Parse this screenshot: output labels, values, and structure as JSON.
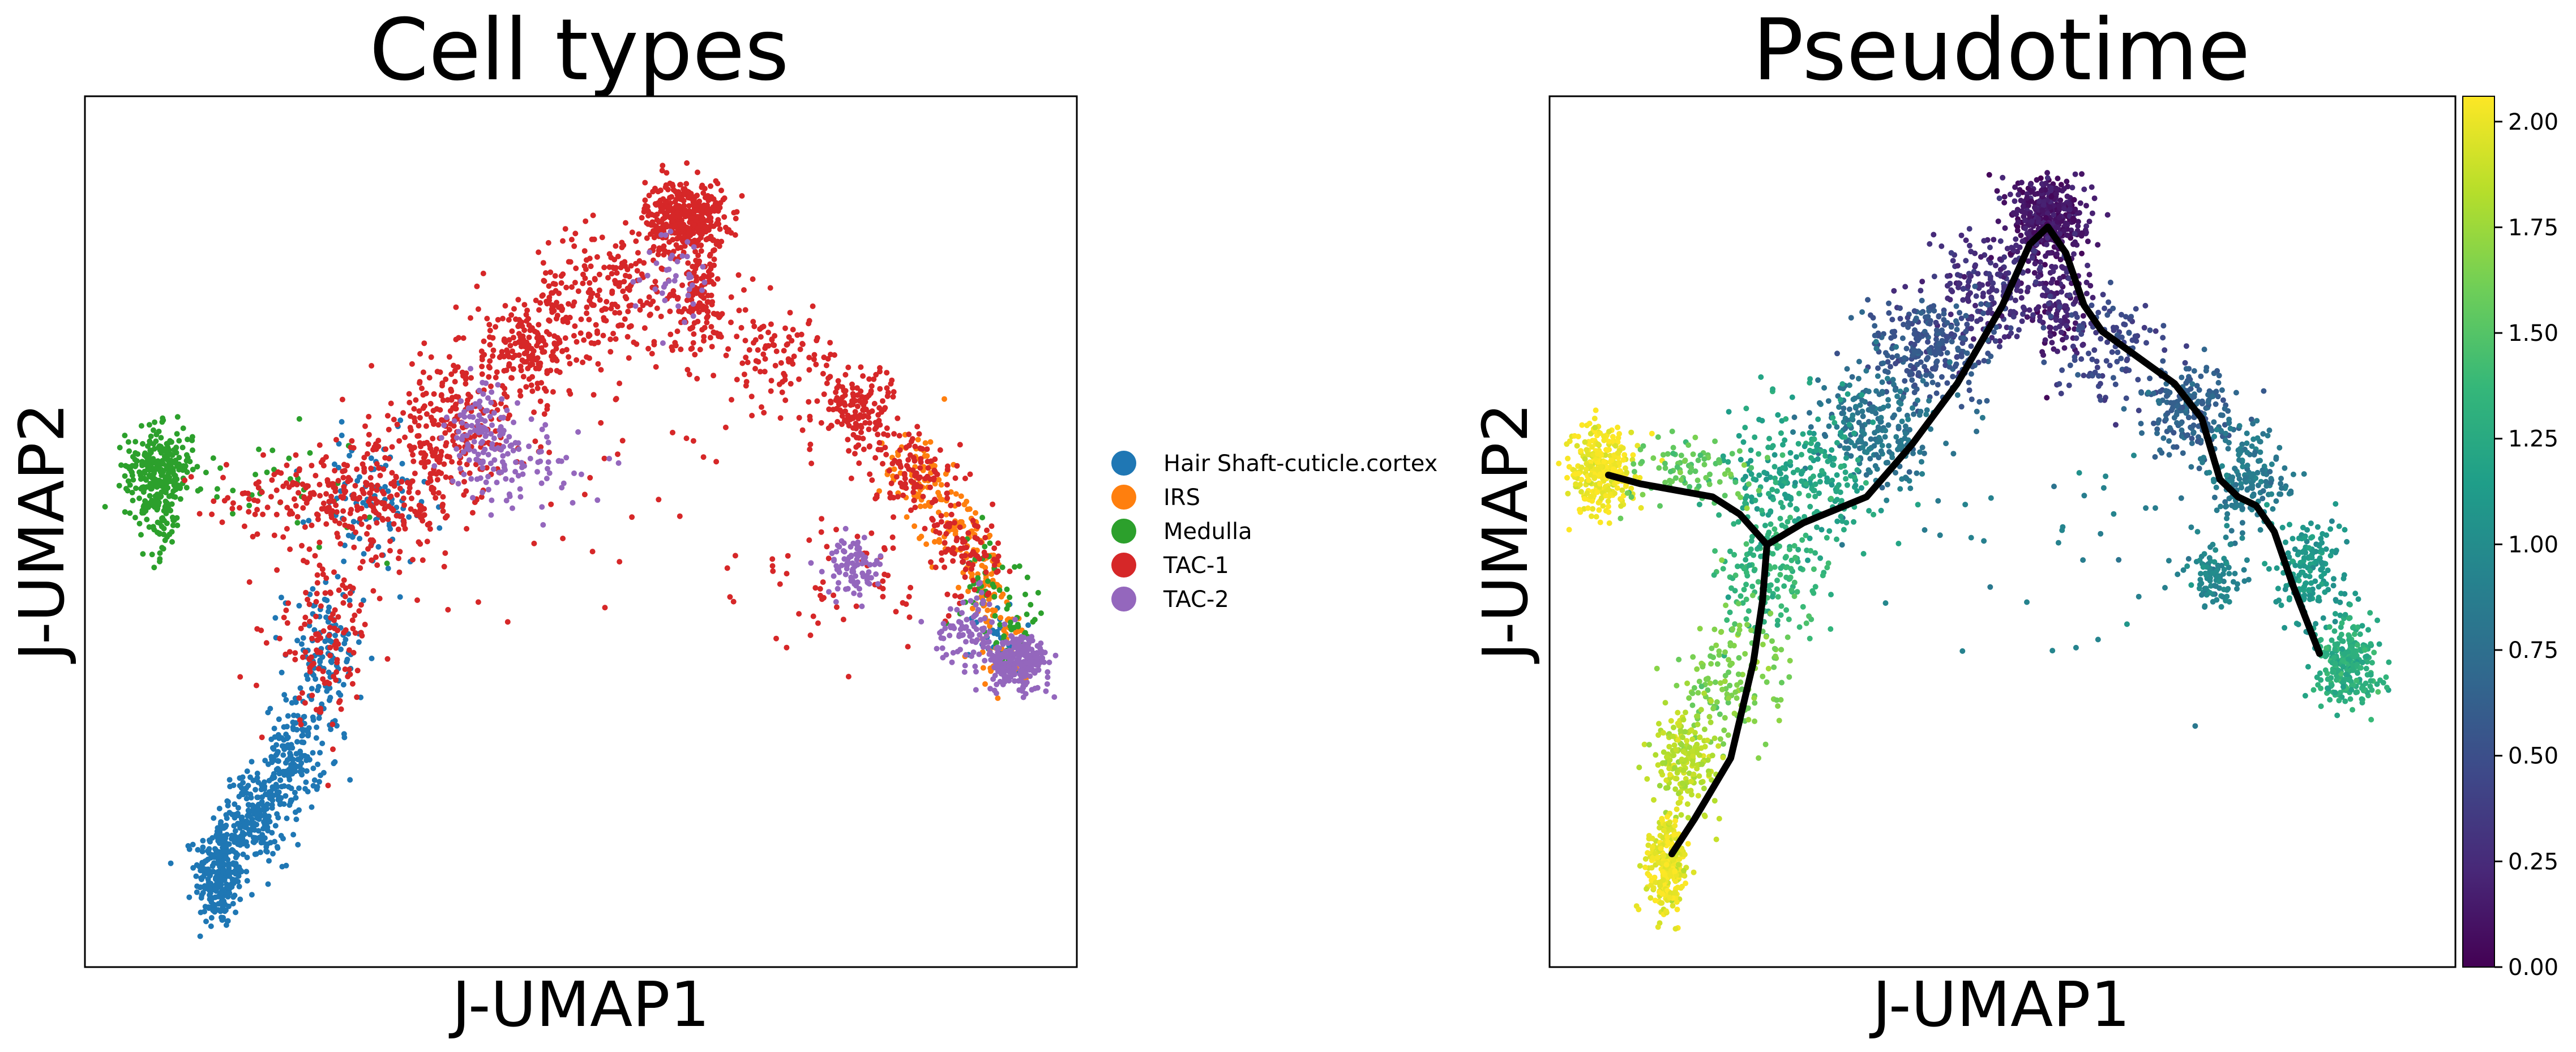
{
  "chart_data": [
    {
      "type": "scatter",
      "title": "Cell types",
      "xlabel": "J-UMAP1",
      "ylabel": "J-UMAP2",
      "xlim": [
        0,
        100
      ],
      "ylim": [
        0,
        100
      ],
      "grid": false,
      "legend_placement": "right",
      "series": [
        {
          "name": "Hair Shaft-cuticle.cortex",
          "color": "#1f77b4",
          "clusters": [
            {
              "cx": 13.5,
              "cy": 10.5,
              "sx": 1.2,
              "sy": 3.0,
              "n": 260
            },
            {
              "cx": 17,
              "cy": 17,
              "sx": 1.6,
              "sy": 2.6,
              "n": 220
            },
            {
              "cx": 21,
              "cy": 24,
              "sx": 1.4,
              "sy": 3.2,
              "n": 160
            },
            {
              "cx": 24,
              "cy": 35,
              "sx": 2.0,
              "sy": 4.5,
              "n": 120
            },
            {
              "cx": 29,
              "cy": 53,
              "sx": 3.0,
              "sy": 4.0,
              "n": 90
            },
            {
              "cx": 92,
              "cy": 38,
              "sx": 1.4,
              "sy": 2.0,
              "n": 30
            }
          ]
        },
        {
          "name": "IRS",
          "color": "#ff7f0e",
          "clusters": [
            {
              "cx": 84,
              "cy": 57,
              "sx": 1.6,
              "sy": 2.4,
              "n": 70
            },
            {
              "cx": 88,
              "cy": 50,
              "sx": 1.4,
              "sy": 2.6,
              "n": 70
            },
            {
              "cx": 91,
              "cy": 44,
              "sx": 1.2,
              "sy": 2.4,
              "n": 60
            },
            {
              "cx": 93,
              "cy": 36,
              "sx": 1.6,
              "sy": 2.4,
              "n": 40
            }
          ]
        },
        {
          "name": "Medulla",
          "color": "#2ca02c",
          "clusters": [
            {
              "cx": 7.5,
              "cy": 57.5,
              "sx": 1.7,
              "sy": 2.2,
              "n": 260
            },
            {
              "cx": 7.5,
              "cy": 52,
              "sx": 1.2,
              "sy": 2.6,
              "n": 80
            },
            {
              "cx": 18,
              "cy": 55,
              "sx": 6.0,
              "sy": 3.0,
              "n": 40
            },
            {
              "cx": 91,
              "cy": 45,
              "sx": 1.4,
              "sy": 3.0,
              "n": 40
            },
            {
              "cx": 94,
              "cy": 38,
              "sx": 1.4,
              "sy": 2.0,
              "n": 30
            }
          ]
        },
        {
          "name": "TAC-1",
          "color": "#d62728",
          "clusters": [
            {
              "cx": 60.5,
              "cy": 86,
              "sx": 2.0,
              "sy": 2.2,
              "n": 420
            },
            {
              "cx": 62,
              "cy": 76,
              "sx": 1.6,
              "sy": 3.0,
              "n": 120
            },
            {
              "cx": 53,
              "cy": 78,
              "sx": 4.0,
              "sy": 3.5,
              "n": 200
            },
            {
              "cx": 45,
              "cy": 71,
              "sx": 3.5,
              "sy": 3.0,
              "n": 220
            },
            {
              "cx": 37,
              "cy": 62,
              "sx": 4.0,
              "sy": 4.0,
              "n": 240
            },
            {
              "cx": 30,
              "cy": 53,
              "sx": 4.0,
              "sy": 3.5,
              "n": 200
            },
            {
              "cx": 22,
              "cy": 54,
              "sx": 4.5,
              "sy": 2.0,
              "n": 120
            },
            {
              "cx": 24,
              "cy": 38,
              "sx": 2.5,
              "sy": 5.0,
              "n": 140
            },
            {
              "cx": 70,
              "cy": 70,
              "sx": 3.0,
              "sy": 3.0,
              "n": 110
            },
            {
              "cx": 78,
              "cy": 64,
              "sx": 2.0,
              "sy": 2.5,
              "n": 150
            },
            {
              "cx": 84,
              "cy": 56,
              "sx": 2.0,
              "sy": 2.5,
              "n": 100
            },
            {
              "cx": 89,
              "cy": 48,
              "sx": 1.6,
              "sy": 3.0,
              "n": 80
            },
            {
              "cx": 78,
              "cy": 44,
              "sx": 5.0,
              "sy": 4.0,
              "n": 60
            },
            {
              "cx": 55,
              "cy": 55,
              "sx": 12.0,
              "sy": 8.0,
              "n": 40
            }
          ]
        },
        {
          "name": "TAC-2",
          "color": "#9467bd",
          "clusters": [
            {
              "cx": 40,
              "cy": 61,
              "sx": 1.8,
              "sy": 2.8,
              "n": 110
            },
            {
              "cx": 44,
              "cy": 57,
              "sx": 3.0,
              "sy": 2.5,
              "n": 70
            },
            {
              "cx": 77.5,
              "cy": 46,
              "sx": 1.4,
              "sy": 1.6,
              "n": 90
            },
            {
              "cx": 94,
              "cy": 35,
              "sx": 1.6,
              "sy": 1.6,
              "n": 240
            },
            {
              "cx": 89,
              "cy": 39,
              "sx": 1.6,
              "sy": 2.0,
              "n": 80
            },
            {
              "cx": 60,
              "cy": 80,
              "sx": 2.0,
              "sy": 3.0,
              "n": 40
            }
          ]
        }
      ]
    },
    {
      "type": "scatter",
      "title": "Pseudotime",
      "xlabel": "J-UMAP1",
      "ylabel": "J-UMAP2",
      "xlim": [
        0,
        100
      ],
      "ylim": [
        0,
        100
      ],
      "grid": false,
      "colorbar": {
        "min": 0.0,
        "max": 2.06,
        "colormap": "viridis",
        "ticks": [
          "0.00",
          "0.25",
          "0.50",
          "0.75",
          "1.00",
          "1.25",
          "1.50",
          "1.75",
          "2.00"
        ]
      },
      "colormap_stops": [
        "#440154",
        "#482878",
        "#3e4989",
        "#31688e",
        "#26828e",
        "#1f9e89",
        "#35b779",
        "#6ece58",
        "#b5de2b",
        "#fde725"
      ],
      "clusters": [
        {
          "cx": 55,
          "cy": 86,
          "sx": 2.0,
          "sy": 2.3,
          "n": 420,
          "t": 0.12
        },
        {
          "cx": 56,
          "cy": 76,
          "sx": 1.6,
          "sy": 3.0,
          "n": 120,
          "t": 0.18
        },
        {
          "cx": 49,
          "cy": 78,
          "sx": 3.5,
          "sy": 3.5,
          "n": 220,
          "t": 0.28
        },
        {
          "cx": 42,
          "cy": 71,
          "sx": 3.5,
          "sy": 3.0,
          "n": 260,
          "t": 0.55
        },
        {
          "cx": 36,
          "cy": 62,
          "sx": 3.5,
          "sy": 3.5,
          "n": 240,
          "t": 0.8
        },
        {
          "cx": 28,
          "cy": 56,
          "sx": 4.0,
          "sy": 3.5,
          "n": 240,
          "t": 1.2
        },
        {
          "cx": 25,
          "cy": 46,
          "sx": 3.0,
          "sy": 4.0,
          "n": 180,
          "t": 1.35
        },
        {
          "cx": 20,
          "cy": 34,
          "sx": 2.5,
          "sy": 4.5,
          "n": 150,
          "t": 1.65
        },
        {
          "cx": 15,
          "cy": 24,
          "sx": 1.8,
          "sy": 3.0,
          "n": 200,
          "t": 1.85
        },
        {
          "cx": 13,
          "cy": 11.5,
          "sx": 1.1,
          "sy": 2.8,
          "n": 260,
          "t": 2.0
        },
        {
          "cx": 5.5,
          "cy": 57,
          "sx": 1.8,
          "sy": 2.5,
          "n": 300,
          "t": 2.03
        },
        {
          "cx": 16,
          "cy": 57,
          "sx": 4.0,
          "sy": 2.0,
          "n": 90,
          "t": 1.55
        },
        {
          "cx": 62,
          "cy": 71,
          "sx": 3.0,
          "sy": 3.0,
          "n": 120,
          "t": 0.45
        },
        {
          "cx": 71,
          "cy": 64,
          "sx": 2.5,
          "sy": 2.5,
          "n": 200,
          "t": 0.65
        },
        {
          "cx": 77,
          "cy": 56,
          "sx": 2.2,
          "sy": 3.0,
          "n": 180,
          "t": 0.85
        },
        {
          "cx": 84,
          "cy": 46,
          "sx": 2.0,
          "sy": 3.0,
          "n": 180,
          "t": 1.1
        },
        {
          "cx": 88,
          "cy": 35,
          "sx": 1.8,
          "sy": 2.2,
          "n": 260,
          "t": 1.3
        },
        {
          "cx": 73.5,
          "cy": 45,
          "sx": 1.4,
          "sy": 2.0,
          "n": 100,
          "t": 0.95
        },
        {
          "cx": 55,
          "cy": 50,
          "sx": 12.0,
          "sy": 8.0,
          "n": 40,
          "t": 0.9
        }
      ],
      "trajectory": [
        {
          "x": 6.5,
          "y": 56.5
        },
        {
          "x": 10,
          "y": 55.5
        },
        {
          "x": 18,
          "y": 54
        },
        {
          "x": 21,
          "y": 52
        },
        {
          "x": 24,
          "y": 48.5
        },
        {
          "x": 28,
          "y": 51
        },
        {
          "x": 35,
          "y": 54
        },
        {
          "x": 40,
          "y": 60
        },
        {
          "x": 45,
          "y": 67
        },
        {
          "x": 50,
          "y": 76
        },
        {
          "x": 53,
          "y": 83
        },
        {
          "x": 55,
          "y": 85
        },
        {
          "x": 57,
          "y": 82
        },
        {
          "x": 59,
          "y": 76
        },
        {
          "x": 61,
          "y": 73
        },
        {
          "x": 65,
          "y": 70
        },
        {
          "x": 69,
          "y": 67
        },
        {
          "x": 72,
          "y": 63
        },
        {
          "x": 74,
          "y": 56
        },
        {
          "x": 76,
          "y": 54
        },
        {
          "x": 78,
          "y": 53
        },
        {
          "x": 80,
          "y": 50
        },
        {
          "x": 82,
          "y": 44
        },
        {
          "x": 85,
          "y": 36
        }
      ],
      "trajectory_branch": [
        {
          "x": 24,
          "y": 48.5
        },
        {
          "x": 23.5,
          "y": 42
        },
        {
          "x": 22.5,
          "y": 35
        },
        {
          "x": 20,
          "y": 24
        },
        {
          "x": 16,
          "y": 17
        },
        {
          "x": 13.5,
          "y": 13
        }
      ]
    }
  ]
}
